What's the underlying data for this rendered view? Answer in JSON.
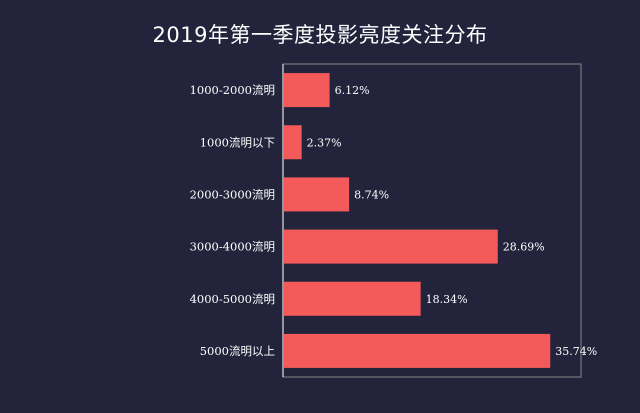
{
  "chart_data": {
    "type": "bar",
    "orientation": "horizontal",
    "title": "2019年第一季度投影亮度关注分布",
    "categories": [
      "1000-2000流明",
      "1000流明以下",
      "2000-3000流明",
      "3000-4000流明",
      "4000-5000流明",
      "5000流明以上"
    ],
    "values": [
      6.12,
      2.37,
      8.74,
      28.69,
      18.34,
      35.74
    ],
    "value_labels": [
      "6.12%",
      "2.37%",
      "8.74%",
      "28.69%",
      "18.34%",
      "35.74%"
    ],
    "xlim": [
      0,
      40
    ],
    "grid": false,
    "legend": "none",
    "colors": {
      "background": "#23233b",
      "bar": "#f45a5a",
      "frame": "#8a8a8a",
      "text": "#ffffff"
    }
  }
}
